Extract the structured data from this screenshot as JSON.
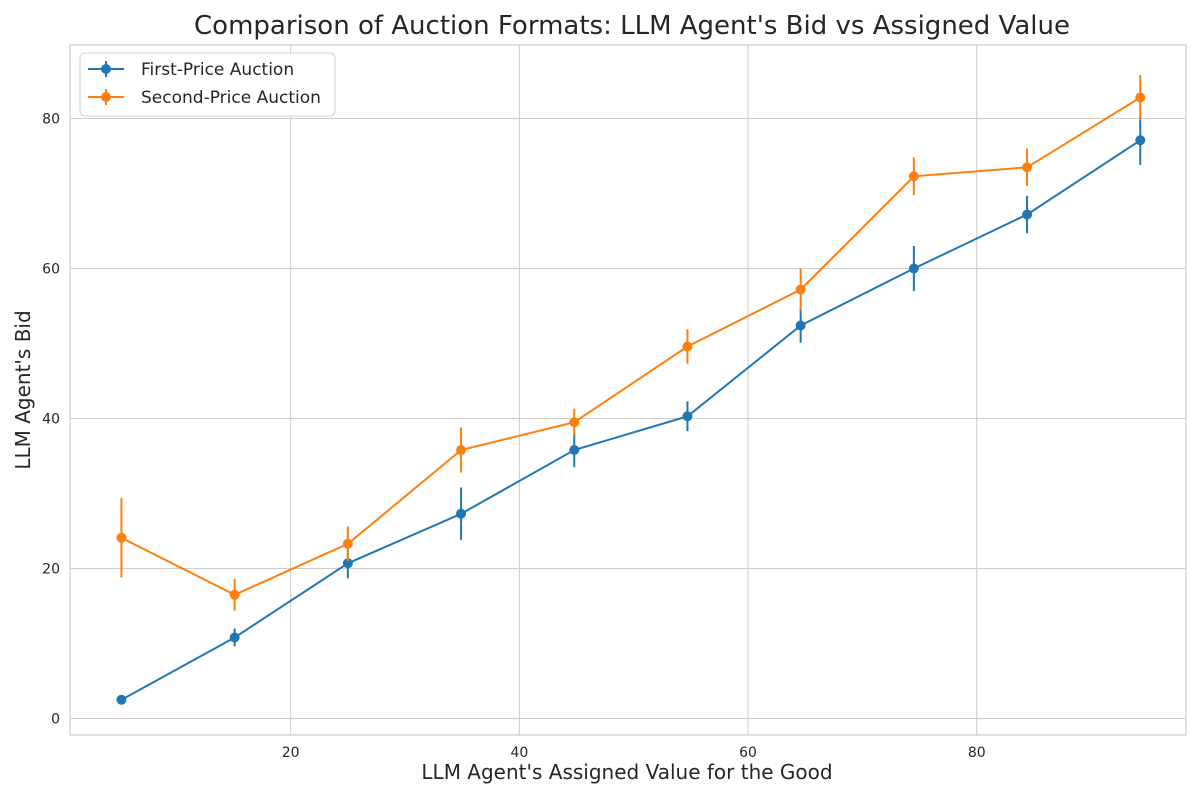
{
  "chart_data": {
    "type": "line",
    "title": "Comparison of Auction Formats: LLM Agent's Bid vs Assigned Value",
    "xlabel": "LLM Agent's Assigned Value for the Good",
    "ylabel": "LLM Agent's Bid",
    "xlim": [
      0.7,
      98.3
    ],
    "ylim": [
      -2.2,
      89.8
    ],
    "xticks": [
      20,
      40,
      60,
      80
    ],
    "yticks": [
      0,
      20,
      40,
      60,
      80
    ],
    "grid": true,
    "legend_position": "top-left",
    "x": [
      5.2,
      15.1,
      25.0,
      34.9,
      44.8,
      54.7,
      64.6,
      74.5,
      84.4,
      94.3
    ],
    "series": [
      {
        "name": "First-Price Auction",
        "color": "#1f77b4",
        "values": [
          2.5,
          10.8,
          20.7,
          27.3,
          35.8,
          40.3,
          52.4,
          60.0,
          67.2,
          77.1
        ],
        "errors": [
          0.3,
          1.2,
          2.0,
          3.5,
          2.3,
          2.0,
          2.3,
          3.0,
          2.5,
          3.3
        ]
      },
      {
        "name": "Second-Price Auction",
        "color": "#ff7f0e",
        "values": [
          24.1,
          16.5,
          23.3,
          35.8,
          39.5,
          49.6,
          57.2,
          72.3,
          73.5,
          82.8
        ],
        "errors": [
          5.3,
          2.1,
          2.3,
          3.0,
          1.8,
          2.3,
          2.8,
          2.5,
          2.5,
          3.0
        ]
      }
    ]
  }
}
